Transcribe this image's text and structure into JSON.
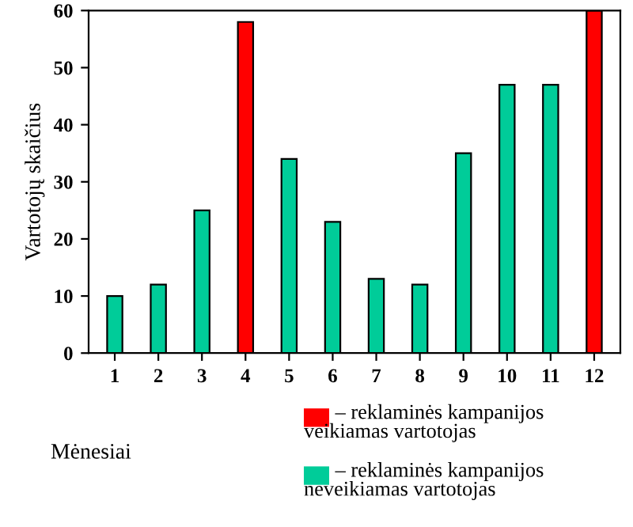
{
  "chart_data": {
    "type": "bar",
    "xlabel": "Mėnesiai",
    "ylabel": "Vartotojų skaičius",
    "categories": [
      "1",
      "2",
      "3",
      "4",
      "5",
      "6",
      "7",
      "8",
      "9",
      "10",
      "11",
      "12"
    ],
    "series": [
      {
        "name": "– reklaminės kampanijos veikiamas vartotojas",
        "color": "#ff0000",
        "values": [
          null,
          null,
          null,
          58,
          null,
          null,
          null,
          null,
          null,
          null,
          null,
          60
        ]
      },
      {
        "name": "– reklaminės kampanijos neveikiamas vartotojas",
        "color": "#00cc99",
        "values": [
          10,
          12,
          25,
          null,
          34,
          23,
          13,
          12,
          35,
          47,
          47,
          null
        ]
      }
    ],
    "ylim": [
      0,
      60
    ],
    "yticks": [
      0,
      10,
      20,
      30,
      40,
      50,
      60
    ],
    "grid": false,
    "legend": "bottom right"
  }
}
